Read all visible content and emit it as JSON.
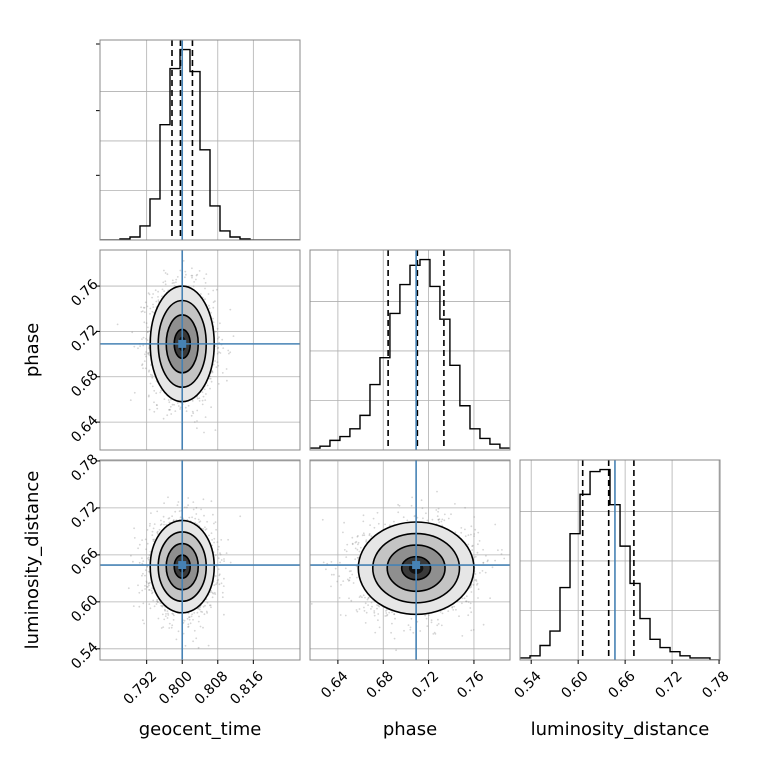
{
  "chart_data": {
    "type": "corner",
    "parameters": [
      "geocent_time",
      "phase",
      "luminosity_distance"
    ],
    "truths": [
      0.8,
      0.709,
      0.647
    ],
    "quantiles_16_50_84": [
      [
        0.7977,
        0.7996,
        0.8023
      ],
      [
        0.6843,
        0.7101,
        0.7335
      ],
      [
        0.6058,
        0.639,
        0.6712
      ]
    ],
    "ranges": [
      [
        0.7815,
        0.8265
      ],
      [
        0.6154,
        0.7918
      ],
      [
        0.5257,
        0.7812
      ]
    ],
    "ticks": [
      [
        0.792,
        0.8,
        0.808,
        0.816
      ],
      [
        0.64,
        0.68,
        0.72,
        0.76
      ],
      [
        0.54,
        0.6,
        0.66,
        0.72,
        0.78
      ]
    ],
    "tick_labels": [
      [
        "0.792",
        "0.800",
        "0.808",
        "0.816"
      ],
      [
        "0.64",
        "0.68",
        "0.72",
        "0.76"
      ],
      [
        "0.54",
        "0.60",
        "0.66",
        "0.72",
        "0.78"
      ]
    ],
    "histograms": [
      {
        "param": "geocent_time",
        "bin_edges": [
          0.7815,
          0.78375,
          0.786,
          0.78825,
          0.7905,
          0.79275,
          0.795,
          0.79725,
          0.7995,
          0.80175,
          0.804,
          0.80625,
          0.8085,
          0.81075,
          0.813,
          0.81525,
          0.8175,
          0.81975,
          0.822,
          0.82425,
          0.8265
        ],
        "counts": [
          0,
          0,
          1,
          3,
          14,
          41,
          115,
          171,
          190,
          168,
          90,
          34,
          9,
          3,
          1,
          0,
          0,
          0,
          0,
          0
        ]
      },
      {
        "param": "phase",
        "bin_edges": [
          0.6154,
          0.6242,
          0.633,
          0.6418,
          0.6506,
          0.6595,
          0.6683,
          0.6771,
          0.6859,
          0.6947,
          0.7036,
          0.7124,
          0.7212,
          0.73,
          0.7388,
          0.7476,
          0.7565,
          0.7653,
          0.7741,
          0.7829,
          0.7918
        ],
        "counts": [
          1,
          2,
          5,
          7,
          11,
          18,
          34,
          48,
          71,
          86,
          96,
          99,
          85,
          68,
          44,
          23,
          11,
          6,
          3,
          1
        ]
      },
      {
        "param": "luminosity_distance",
        "bin_edges": [
          0.5257,
          0.5385,
          0.5513,
          0.564,
          0.5768,
          0.5896,
          0.6024,
          0.6152,
          0.6279,
          0.6407,
          0.6535,
          0.6663,
          0.679,
          0.6918,
          0.7046,
          0.7174,
          0.7301,
          0.7429,
          0.7557,
          0.7684,
          0.7812
        ],
        "counts": [
          1,
          2,
          7,
          14,
          35,
          61,
          80,
          91,
          92,
          75,
          55,
          37,
          20,
          10,
          6,
          4,
          2,
          1,
          1,
          0
        ]
      }
    ],
    "pairs": [
      {
        "x": "geocent_time",
        "y": "phase",
        "center": [
          0.8,
          0.709
        ],
        "sigma": [
          0.0036,
          0.0255
        ],
        "rho": -0.05
      },
      {
        "x": "geocent_time",
        "y": "luminosity_distance",
        "center": [
          0.8,
          0.645
        ],
        "sigma": [
          0.0036,
          0.0295
        ],
        "rho": 0.0
      },
      {
        "x": "phase",
        "y": "luminosity_distance",
        "center": [
          0.709,
          0.643
        ],
        "sigma": [
          0.0255,
          0.0295
        ],
        "rho": 0.02
      }
    ],
    "colors": {
      "truth": "#4682b4",
      "hist": "#000000",
      "samples": "#888888",
      "grid": "#b0b0b0"
    },
    "grid": true
  }
}
